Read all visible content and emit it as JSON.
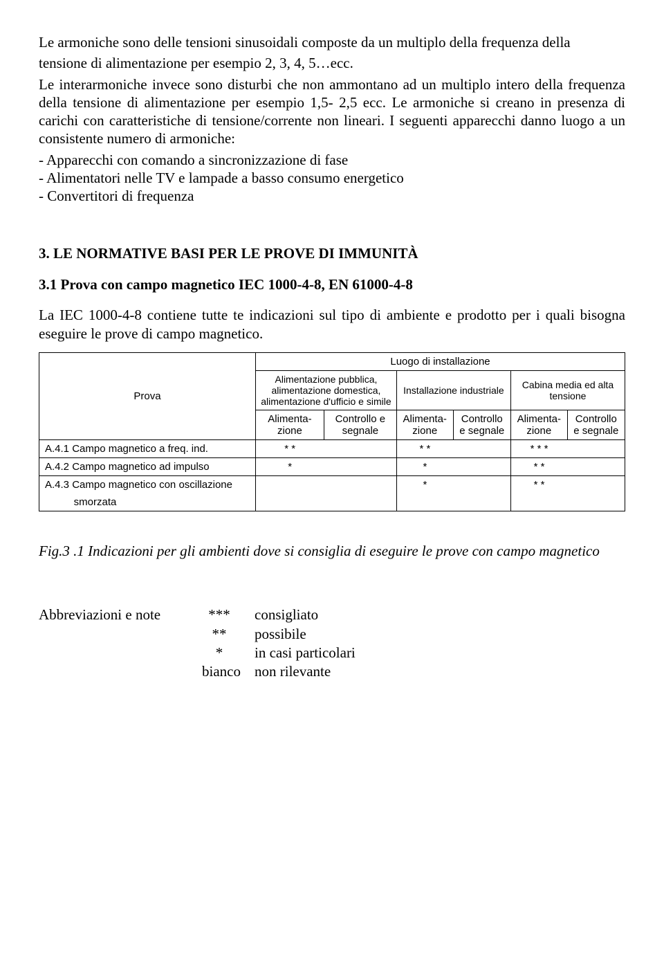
{
  "para1": "Le armoniche sono delle tensioni sinusoidali composte da un multiplo della frequenza della",
  "para1b": "tensione di alimentazione per esempio 2, 3, 4, 5…ecc.",
  "para2": "Le interarmoniche invece sono disturbi che non ammontano ad un multiplo intero della frequenza della tensione di alimentazione per esempio 1,5- 2,5 ecc. Le armoniche si creano in presenza di carichi con caratteristiche di tensione/corrente non lineari. I seguenti apparecchi danno luogo a un consistente numero di armoniche:",
  "bullets": {
    "b1": "-  Apparecchi con comando a sincronizzazione di fase",
    "b2": "-  Alimentatori nelle TV e lampade a basso consumo energetico",
    "b3": "-  Convertitori di frequenza"
  },
  "section_title": "3.   LE NORMATIVE BASI PER LE PROVE DI IMMUNITÀ",
  "subsection_title": "3.1 Prova con campo magnetico IEC 1000-4-8, EN 61000-4-8",
  "para3": "La IEC 1000-4-8 contiene tutte te indicazioni sul tipo di ambiente e prodotto per i quali bisogna eseguire le prove di campo magnetico.",
  "table": {
    "header_super": "Luogo di installazione",
    "prova": "Prova",
    "col_groups": {
      "g1": "Alimentazione pubblica, alimentazione domestica, alimentazione d'ufficio e simile",
      "g2": "Installazione industriale",
      "g3": "Cabina media ed alta tensione"
    },
    "sub_a": "Alimenta-zione",
    "sub_b": "Controllo e segnale",
    "rows": [
      {
        "label": "A.4.1 Campo magnetico a freq. ind.",
        "c": [
          "* *",
          "",
          "* *",
          "",
          "* * *",
          ""
        ]
      },
      {
        "label": "A.4.2 Campo magnetico ad impulso",
        "c": [
          "*",
          "",
          "*",
          "",
          "* *",
          ""
        ]
      },
      {
        "label": "A.4.3 Campo magnetico con oscillazione",
        "c": [
          "",
          "",
          "*",
          "",
          "* *",
          ""
        ]
      },
      {
        "label": "          smorzata",
        "c": [
          "",
          "",
          "",
          "",
          "",
          ""
        ]
      }
    ]
  },
  "caption": "Fig.3 .1 Indicazioni per gli ambienti dove si consiglia di eseguire le prove con campo magnetico",
  "abbrev": {
    "title": "Abbreviazioni e note",
    "rows": [
      {
        "sym": "***",
        "desc": "consigliato"
      },
      {
        "sym": "**",
        "desc": "possibile"
      },
      {
        "sym": "*",
        "desc": "in casi particolari"
      },
      {
        "sym": "bianco",
        "desc": "non rilevante"
      }
    ]
  }
}
